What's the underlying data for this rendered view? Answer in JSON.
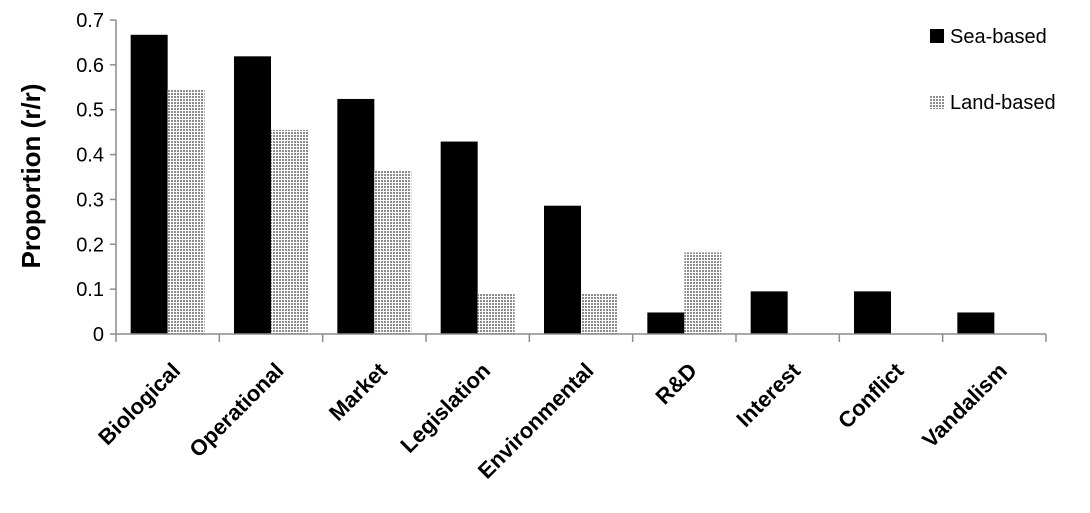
{
  "chart_data": {
    "type": "bar",
    "title": "",
    "xlabel": "",
    "ylabel": "Proportion (r/r)",
    "ylim": [
      0,
      0.7
    ],
    "yticks": [
      "0",
      "0.1",
      "0.2",
      "0.3",
      "0.4",
      "0.5",
      "0.6",
      "0.7"
    ],
    "grid": false,
    "legend_position": "top-right",
    "categories": [
      "Biological",
      "Operational",
      "Market",
      "Legislation",
      "Environmental",
      "R&D",
      "Interest",
      "Conflict",
      "Vandalism"
    ],
    "series": [
      {
        "name": "Sea-based",
        "color": "#000000",
        "pattern": "solid",
        "values": [
          0.667,
          0.619,
          0.524,
          0.429,
          0.286,
          0.048,
          0.095,
          0.095,
          0.048
        ]
      },
      {
        "name": "Land-based",
        "color": "#bfbfbf",
        "pattern": "dotted",
        "values": [
          0.545,
          0.455,
          0.364,
          0.091,
          0.091,
          0.182,
          0,
          0,
          0
        ]
      }
    ]
  }
}
